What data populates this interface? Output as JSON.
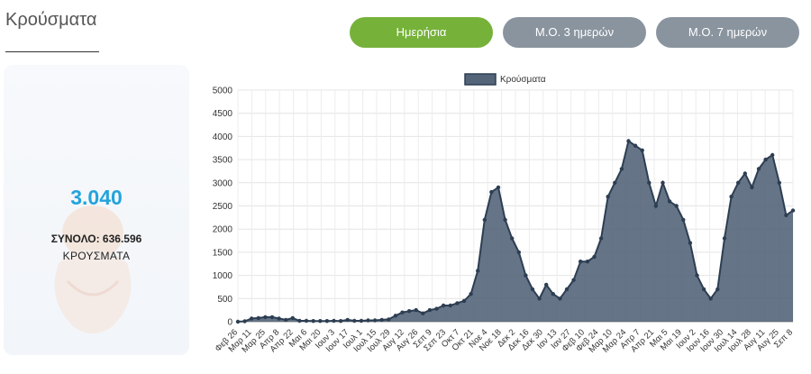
{
  "page": {
    "title": "Κρούσματα"
  },
  "toggles": [
    {
      "label": "Ημερήσια",
      "active": true
    },
    {
      "label": "Μ.Ο. 3 ημερών",
      "active": false
    },
    {
      "label": "Μ.Ο. 7 ημερών",
      "active": false
    }
  ],
  "stats": {
    "today": "3.040",
    "total_line": "ΣΥΝΟΛΟ: 636.596",
    "subtitle": "ΚΡΟΥΣΜΑΤΑ"
  },
  "colors": {
    "accent_green": "#76b23a",
    "button_gray": "#8a949f",
    "value_blue": "#23a4dc",
    "area_fill": "#546579",
    "line": "#2d3e52"
  },
  "chart_data": {
    "type": "area",
    "series": [
      {
        "name": "Κρούσματα",
        "points": [
          [
            "Φεβ 26",
            0
          ],
          [
            "Μαρ 4",
            10
          ],
          [
            "Μαρ 11",
            70
          ],
          [
            "Μαρ 18",
            80
          ],
          [
            "Μαρ 25",
            100
          ],
          [
            "Απρ 1",
            100
          ],
          [
            "Απρ 8",
            70
          ],
          [
            "Απρ 15",
            40
          ],
          [
            "Απρ 22",
            80
          ],
          [
            "Απρ 29",
            20
          ],
          [
            "Μαι 6",
            20
          ],
          [
            "Μαι 13",
            15
          ],
          [
            "Μαι 20",
            15
          ],
          [
            "Μαι 27",
            15
          ],
          [
            "Ιουν 3",
            20
          ],
          [
            "Ιουν 10",
            15
          ],
          [
            "Ιουν 17",
            40
          ],
          [
            "Ιουν 24",
            20
          ],
          [
            "Ιουλ 1",
            20
          ],
          [
            "Ιουλ 8",
            30
          ],
          [
            "Ιουλ 15",
            30
          ],
          [
            "Ιουλ 22",
            40
          ],
          [
            "Ιουλ 29",
            50
          ],
          [
            "Αυγ 5",
            130
          ],
          [
            "Αυγ 12",
            200
          ],
          [
            "Αυγ 19",
            230
          ],
          [
            "Αυγ 26",
            250
          ],
          [
            "Σεπ 2",
            180
          ],
          [
            "Σεπ 9",
            250
          ],
          [
            "Σεπ 16",
            280
          ],
          [
            "Σεπ 23",
            350
          ],
          [
            "Σεπ 30",
            350
          ],
          [
            "Οκτ 7",
            400
          ],
          [
            "Οκτ 14",
            450
          ],
          [
            "Οκτ 21",
            600
          ],
          [
            "Οκτ 28",
            1100
          ],
          [
            "Νοε 4",
            2200
          ],
          [
            "Νοε 11",
            2800
          ],
          [
            "Νοε 18",
            2900
          ],
          [
            "Νοε 25",
            2200
          ],
          [
            "Δεκ 2",
            1800
          ],
          [
            "Δεκ 9",
            1500
          ],
          [
            "Δεκ 16",
            1000
          ],
          [
            "Δεκ 23",
            700
          ],
          [
            "Δεκ 30",
            500
          ],
          [
            "Ιαν 6",
            800
          ],
          [
            "Ιαν 13",
            600
          ],
          [
            "Ιαν 20",
            500
          ],
          [
            "Ιαν 27",
            700
          ],
          [
            "Φεβ 3",
            900
          ],
          [
            "Φεβ 10",
            1300
          ],
          [
            "Φεβ 17",
            1300
          ],
          [
            "Φεβ 24",
            1400
          ],
          [
            "Μαρ 3",
            1800
          ],
          [
            "Μαρ 10",
            2700
          ],
          [
            "Μαρ 17",
            3000
          ],
          [
            "Μαρ 24",
            3300
          ],
          [
            "Μαρ 31",
            3900
          ],
          [
            "Απρ 7",
            3800
          ],
          [
            "Απρ 14",
            3700
          ],
          [
            "Απρ 21",
            3000
          ],
          [
            "Απρ 28",
            2500
          ],
          [
            "Μαι 5",
            3000
          ],
          [
            "Μαι 12",
            2600
          ],
          [
            "Μαι 19",
            2500
          ],
          [
            "Μαι 26",
            2200
          ],
          [
            "Ιουν 2",
            1700
          ],
          [
            "Ιουν 9",
            1000
          ],
          [
            "Ιουν 16",
            700
          ],
          [
            "Ιουν 23",
            500
          ],
          [
            "Ιουν 30",
            700
          ],
          [
            "Ιουλ 7",
            1800
          ],
          [
            "Ιουλ 14",
            2700
          ],
          [
            "Ιουλ 21",
            3000
          ],
          [
            "Ιουλ 28",
            3200
          ],
          [
            "Αυγ 4",
            2900
          ],
          [
            "Αυγ 11",
            3300
          ],
          [
            "Αυγ 18",
            3500
          ],
          [
            "Αυγ 25",
            3600
          ],
          [
            "Σεπ 1",
            3000
          ],
          [
            "Σεπ 8",
            2300
          ],
          [
            "Σεπ 15",
            2400
          ]
        ]
      }
    ],
    "x_tick_labels": [
      "Φεβ 26",
      "Μαρ 11",
      "Μαρ 25",
      "Απρ 8",
      "Απρ 22",
      "Μαι 6",
      "Μαι 20",
      "Ιουν 3",
      "Ιουν 17",
      "Ιουλ 1",
      "Ιουλ 15",
      "Ιουλ 29",
      "Αυγ 12",
      "Αυγ 26",
      "Σεπ 9",
      "Σεπ 23",
      "Οκτ 7",
      "Οκτ 21",
      "Νοε 4",
      "Νοε 18",
      "Δεκ 2",
      "Δεκ 16",
      "Δεκ 30",
      "Ιαν 13",
      "Ιαν 27",
      "Φεβ 10",
      "Φεβ 24",
      "Μαρ 10",
      "Μαρ 24",
      "Απρ 7",
      "Απρ 21",
      "Μαι 5",
      "Μαι 19",
      "Ιουν 2",
      "Ιουν 16",
      "Ιουν 30",
      "Ιουλ 14",
      "Ιουλ 28",
      "Αυγ 11",
      "Αυγ 25",
      "Σεπ 8"
    ],
    "y_ticks": [
      0,
      500,
      1000,
      1500,
      2000,
      2500,
      3000,
      3500,
      4000,
      4500,
      5000
    ],
    "ylim": [
      0,
      5000
    ],
    "grid": true,
    "legend_position": "top-center",
    "title": "",
    "xlabel": "",
    "ylabel": ""
  }
}
